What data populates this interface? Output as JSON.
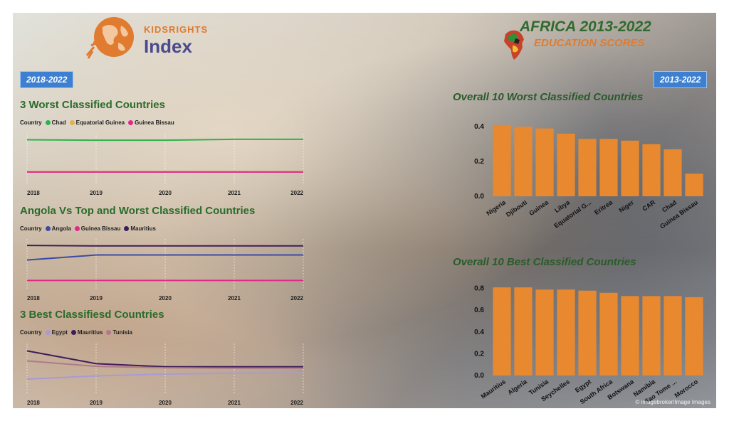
{
  "header": {
    "logo_line1": "KIDSRIGHTS",
    "logo_line2": "Index",
    "title": "AFRICA 2013-2022",
    "subtitle": "EDUCATION SCORES",
    "badge_left": "2018-2022",
    "badge_right": "2013-2022",
    "credit": "© imagebroker/Image Images"
  },
  "colors": {
    "chad": "#2db24a",
    "equatorial_guinea": "#e0b24b",
    "guinea_bissau": "#e0298a",
    "angola": "#3b4aa8",
    "mauritius": "#3d1d58",
    "egypt": "#a89ad6",
    "tunisia": "#b07a8a",
    "bar": "#e8892f"
  },
  "chart_data": [
    {
      "id": "worst3",
      "type": "line",
      "title": "3 Worst Classified Countries",
      "legend_label": "Country",
      "x": [
        "2018",
        "2019",
        "2020",
        "2021",
        "2022"
      ],
      "ylim": [
        0,
        1
      ],
      "series": [
        {
          "name": "Chad",
          "color_key": "chad",
          "values": [
            0.93,
            0.92,
            0.92,
            0.94,
            0.94
          ]
        },
        {
          "name": "Equatorial Guinea",
          "color_key": "equatorial_guinea",
          "values": [
            0.23,
            0.23,
            0.23,
            0.23,
            0.23
          ]
        },
        {
          "name": "Guinea Bissau",
          "color_key": "guinea_bissau",
          "values": [
            0.22,
            0.22,
            0.22,
            0.22,
            0.22
          ]
        }
      ]
    },
    {
      "id": "angola",
      "type": "line",
      "title": "Angola Vs Top and Worst Classified Countries",
      "legend_label": "Country",
      "x": [
        "2018",
        "2019",
        "2020",
        "2021",
        "2022"
      ],
      "ylim": [
        0,
        1
      ],
      "series": [
        {
          "name": "Angola",
          "color_key": "angola",
          "values": [
            0.6,
            0.71,
            0.71,
            0.71,
            0.71
          ]
        },
        {
          "name": "Guinea Bissau",
          "color_key": "guinea_bissau",
          "values": [
            0.15,
            0.15,
            0.15,
            0.15,
            0.15
          ]
        },
        {
          "name": "Mauritius",
          "color_key": "mauritius",
          "values": [
            0.92,
            0.91,
            0.91,
            0.91,
            0.91
          ]
        }
      ]
    },
    {
      "id": "best3",
      "type": "line",
      "title": "3 Best Classifiesd Countries",
      "legend_label": "Country",
      "x": [
        "2018",
        "2019",
        "2020",
        "2021",
        "2022"
      ],
      "ylim": [
        0,
        1
      ],
      "series": [
        {
          "name": "Egypt",
          "color_key": "egypt",
          "values": [
            0.28,
            0.35,
            0.39,
            0.41,
            0.41
          ]
        },
        {
          "name": "Mauritius",
          "color_key": "mauritius",
          "values": [
            0.9,
            0.62,
            0.55,
            0.55,
            0.55
          ]
        },
        {
          "name": "Tunisia",
          "color_key": "tunisia",
          "values": [
            0.68,
            0.56,
            0.53,
            0.52,
            0.52
          ]
        }
      ]
    },
    {
      "id": "worst10",
      "type": "bar",
      "title": "Overall 10 Worst Classified Countries",
      "categories": [
        "Nigeria",
        "Djibouti",
        "Guinea",
        "Libya",
        "Equatorial G...",
        "Eritrea",
        "Niger",
        "CAR",
        "Chad",
        "Guinea Bissau"
      ],
      "values": [
        0.41,
        0.4,
        0.39,
        0.36,
        0.33,
        0.33,
        0.32,
        0.3,
        0.27,
        0.13
      ],
      "ylim": [
        0,
        0.45
      ],
      "yticks": [
        "0.0",
        "0.2",
        "0.4"
      ]
    },
    {
      "id": "best10",
      "type": "bar",
      "title": "Overall 10 Best Classified Countries",
      "categories": [
        "Mauritius",
        "Algeria",
        "Tunisia",
        "Seychelles",
        "Egypt",
        "South Africa",
        "Botswana",
        "Namibia",
        "Sao Tome ...",
        "Morocco"
      ],
      "values": [
        0.81,
        0.81,
        0.79,
        0.79,
        0.78,
        0.76,
        0.73,
        0.73,
        0.73,
        0.72
      ],
      "ylim": [
        0,
        0.85
      ],
      "yticks": [
        "0.0",
        "0.2",
        "0.4",
        "0.6",
        "0.8"
      ]
    }
  ]
}
